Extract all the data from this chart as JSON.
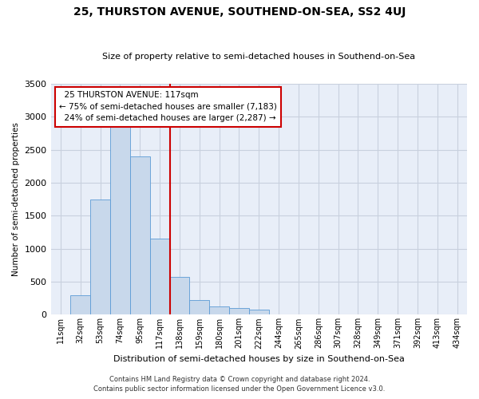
{
  "title": "25, THURSTON AVENUE, SOUTHEND-ON-SEA, SS2 4UJ",
  "subtitle": "Size of property relative to semi-detached houses in Southend-on-Sea",
  "xlabel": "Distribution of semi-detached houses by size in Southend-on-Sea",
  "ylabel": "Number of semi-detached properties",
  "footnote1": "Contains HM Land Registry data © Crown copyright and database right 2024.",
  "footnote2": "Contains public sector information licensed under the Open Government Licence v3.0.",
  "bar_color": "#c8d8eb",
  "bar_edge_color": "#5b9bd5",
  "grid_color": "#c8d0de",
  "annotation_box_color": "#cc0000",
  "vline_color": "#cc0000",
  "property_label": "25 THURSTON AVENUE: 117sqm",
  "pct_smaller": 75,
  "count_smaller": 7183,
  "pct_larger": 24,
  "count_larger": 2287,
  "categories": [
    "11sqm",
    "32sqm",
    "53sqm",
    "74sqm",
    "95sqm",
    "117sqm",
    "138sqm",
    "159sqm",
    "180sqm",
    "201sqm",
    "222sqm",
    "244sqm",
    "265sqm",
    "286sqm",
    "307sqm",
    "328sqm",
    "349sqm",
    "371sqm",
    "392sqm",
    "413sqm",
    "434sqm"
  ],
  "values": [
    10,
    300,
    1750,
    3050,
    2400,
    1150,
    575,
    220,
    130,
    100,
    75,
    10,
    0,
    0,
    0,
    0,
    0,
    0,
    0,
    0,
    0
  ],
  "ylim": [
    0,
    3500
  ],
  "yticks": [
    0,
    500,
    1000,
    1500,
    2000,
    2500,
    3000,
    3500
  ],
  "vline_index": 5,
  "background_color": "#e8eef8"
}
